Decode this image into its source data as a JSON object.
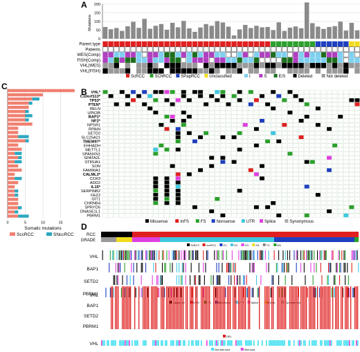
{
  "panels": {
    "A": "A",
    "B": "B",
    "C": "C",
    "D": "D"
  },
  "chart_data": [
    {
      "panel": "A",
      "type": "bar",
      "ylabel": "Mutations",
      "ylim": [
        0,
        200
      ],
      "yticks": [
        "200",
        "150",
        "100",
        "50",
        "0"
      ],
      "values": [
        68,
        55,
        62,
        45,
        72,
        98,
        63,
        115,
        58,
        75,
        85,
        52,
        92,
        66,
        103,
        60,
        40,
        65,
        85,
        75,
        102,
        94,
        70,
        19,
        54,
        80,
        62,
        75,
        66,
        68,
        50,
        95,
        45,
        64,
        71,
        61,
        210,
        90,
        70,
        57,
        68,
        73,
        99,
        47,
        92,
        48
      ],
      "legend": {
        "items": [
          {
            "label": "ScRCC",
            "color": "#e02020"
          },
          {
            "label": "SChRCC",
            "color": "#2ca02c"
          },
          {
            "label": "SPapRCC",
            "color": "#1f3fbf"
          },
          {
            "label": "Unclassified",
            "color": "#f0dc1e"
          },
          {
            "label": "I",
            "color": "#7fd0f0"
          },
          {
            "label": "S",
            "color": "#b040c0"
          },
          {
            "label": "E/S",
            "color": "#1e6e1e"
          },
          {
            "label": "Deleted",
            "color": "#000000"
          },
          {
            "label": "Not deleted",
            "color": "#999999"
          }
        ]
      },
      "tracks": [
        "Parent type",
        "Patients",
        "WES(Comp)",
        "FISH(Comp)",
        "VHL(WES)",
        "VHL(FISH)"
      ]
    },
    {
      "panel": "B",
      "type": "heatmap",
      "genes": [
        "VHL*",
        "C10orf113*",
        "TP53*",
        "PTEN*",
        "RELN",
        "UPK3B",
        "BAP1*",
        "NF2*",
        "NPSR1",
        "RPAIN",
        "SETD2",
        "SLC25A21",
        "TMEM97*",
        "EHHADH",
        "METTL1",
        "SPANXN1",
        "SPATA2L",
        "ST8SIA1",
        "SON",
        "FAM90A1",
        "CALML3*",
        "CCR3",
        "ADD2",
        "IL15*",
        "SERPINB2",
        "FEZ2",
        "GIT1",
        "CHRNB4",
        "SPRYD5",
        "DNASE1L1",
        "PBRM1"
      ],
      "bold_genes": [
        "VHL*",
        "C10orf113*",
        "TP53*",
        "PTEN*",
        "BAP1*",
        "NF2*",
        "TMEM97*",
        "CALML3*",
        "IL15*"
      ],
      "legend": {
        "items": [
          {
            "label": "Missense",
            "color": "#000000"
          },
          {
            "label": "InFS",
            "color": "#e02020"
          },
          {
            "label": "FS",
            "color": "#2ca02c"
          },
          {
            "label": "Nonsense",
            "color": "#1f3fbf"
          },
          {
            "label": "UTR",
            "color": "#40c8e0"
          },
          {
            "label": "Splice",
            "color": "#e040e0"
          },
          {
            "label": "Synonymous",
            "color": "#aaaaaa"
          }
        ]
      }
    },
    {
      "panel": "C",
      "type": "bar",
      "orientation": "horizontal",
      "xlabel": "Somatic mutations",
      "xticks": [
        "0",
        "5",
        "10",
        "15"
      ],
      "xlim": [
        0,
        20
      ],
      "series": [
        {
          "name": "SccRCC",
          "color": "#f08070",
          "values": [
            19,
            10,
            7,
            6,
            6,
            5,
            5,
            5,
            7,
            3,
            3,
            3,
            5,
            3,
            4,
            2,
            3,
            2,
            3,
            4,
            2,
            2,
            3,
            2,
            2,
            2,
            3,
            3,
            3,
            2,
            3
          ]
        },
        {
          "name": "SNccRCC",
          "color": "#2aa8c0",
          "values": [
            0,
            0,
            2,
            1,
            0,
            1,
            2,
            1,
            0,
            0,
            0,
            3,
            1,
            0,
            0,
            2,
            1,
            2,
            0,
            0,
            0,
            2,
            0,
            0,
            1,
            1,
            0,
            0,
            1,
            1,
            3
          ]
        }
      ]
    },
    {
      "panel": "D",
      "type": "heatmap",
      "rows_top": [
        "RCC",
        "GRADE"
      ],
      "legend_top": {
        "items": [
          {
            "label": "ScRCC",
            "color": "#000000"
          },
          {
            "label": "nccRCC",
            "color": "#e02020"
          },
          {
            "label": "G1",
            "color": "#1f3fbf"
          },
          {
            "label": "G2",
            "color": "#40c8e0"
          },
          {
            "label": "G3",
            "color": "#e040e0"
          },
          {
            "label": "G4",
            "color": "#f0dc1e"
          },
          {
            "label": "T4",
            "color": "#888888"
          },
          {
            "label": "M4",
            "color": "#2ca02c"
          }
        ]
      },
      "rows_mid": [
        "VHL",
        "BAP1",
        "SETD2",
        "PBRM1"
      ],
      "legend_mid": {
        "items": [
          {
            "label": "Missense",
            "color": "#000000"
          },
          {
            "label": "InFS",
            "color": "#e02020"
          },
          {
            "label": "FS",
            "color": "#2ca02c"
          },
          {
            "label": "Nonsense",
            "color": "#1f3fbf"
          },
          {
            "label": "UTR",
            "color": "#40c8e0"
          },
          {
            "label": "Splice",
            "color": "#e040e0"
          },
          {
            "label": "Intron",
            "color": "#f0dc1e"
          },
          {
            "label": "Synonymous",
            "color": "#aaaaaa"
          }
        ]
      },
      "rows_cn": [
        "VHL",
        "BAP1",
        "SETD2",
        "PBRM1"
      ],
      "legend_cn": {
        "items": [
          {
            "label": "DEL",
            "color": "#e02020"
          }
        ]
      },
      "rows_meth": [
        "VHL"
      ],
      "legend_meth": {
        "items": [
          {
            "label": "Not silenced",
            "color": "#40e0f0"
          },
          {
            "label": "Silenced",
            "color": "#e040e0"
          }
        ]
      }
    }
  ]
}
